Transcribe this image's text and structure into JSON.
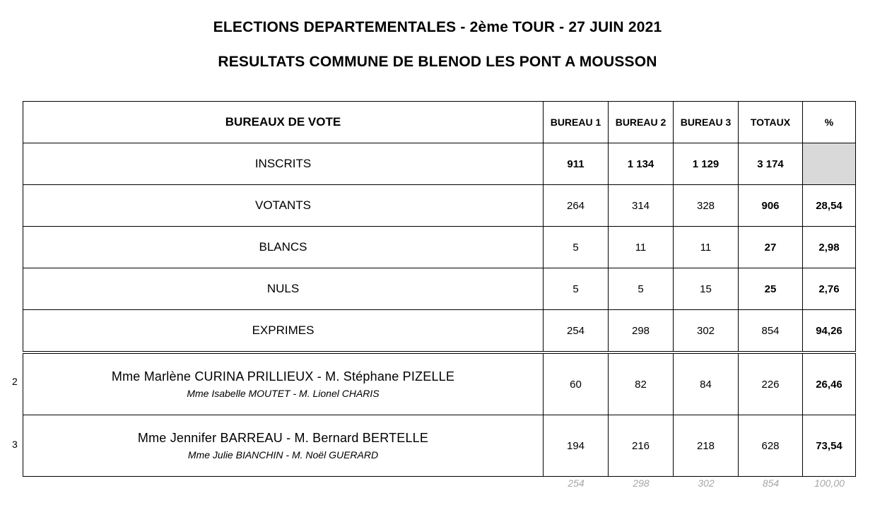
{
  "title": "ELECTIONS DEPARTEMENTALES - 2ème TOUR - 27 JUIN 2021",
  "subtitle": "RESULTATS COMMUNE DE BLENOD LES PONT A MOUSSON",
  "headers": [
    "BUREAUX DE VOTE",
    "BUREAU 1",
    "BUREAU 2",
    "BUREAU 3",
    "TOTAUX",
    "%"
  ],
  "rows": [
    {
      "label": "INSCRITS",
      "b1": "911",
      "b2": "1 134",
      "b3": "1 129",
      "total": "3 174",
      "pct": ""
    },
    {
      "label": "VOTANTS",
      "b1": "264",
      "b2": "314",
      "b3": "328",
      "total": "906",
      "pct": "28,54"
    },
    {
      "label": "BLANCS",
      "b1": "5",
      "b2": "11",
      "b3": "11",
      "total": "27",
      "pct": "2,98"
    },
    {
      "label": "NULS",
      "b1": "5",
      "b2": "5",
      "b3": "15",
      "total": "25",
      "pct": "2,76"
    },
    {
      "label": "EXPRIMES",
      "b1": "254",
      "b2": "298",
      "b3": "302",
      "total": "854",
      "pct": "94,26"
    }
  ],
  "candidates": [
    {
      "number": "2",
      "titulaires": "Mme Marlène CURINA PRILLIEUX  -  M. Stéphane PIZELLE",
      "remplacants": "Mme Isabelle MOUTET  -  M. Lionel CHARIS",
      "b1": "60",
      "b2": "82",
      "b3": "84",
      "total": "226",
      "pct": "26,46"
    },
    {
      "number": "3",
      "titulaires": "Mme Jennifer BARREAU  -  M. Bernard BERTELLE",
      "remplacants": "Mme Julie BIANCHIN  -  M. Noël GUERARD",
      "b1": "194",
      "b2": "216",
      "b3": "218",
      "total": "628",
      "pct": "73,54"
    }
  ],
  "check_totals": [
    "254",
    "298",
    "302",
    "854",
    "100,00"
  ],
  "colors": {
    "grey_cell": "#d9d9d9",
    "check_text": "#a6a6a6"
  }
}
